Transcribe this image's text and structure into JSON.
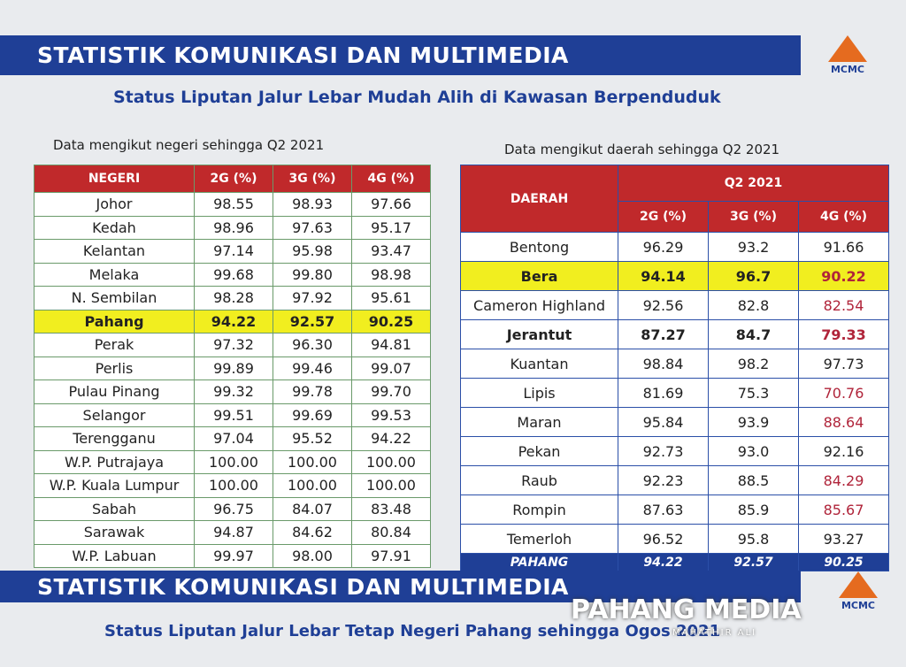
{
  "header": {
    "title": "STATISTIK KOMUNIKASI DAN MULTIMEDIA",
    "logo": "MCMC",
    "subtitle": "Status Liputan Jalur Lebar Mudah Alih di Kawasan Berpenduduk"
  },
  "left_table": {
    "caption": "Data mengikut negeri sehingga Q2 2021",
    "columns": [
      "NEGERI",
      "2G (%)",
      "3G (%)",
      "4G (%)"
    ],
    "rows": [
      [
        "Johor",
        "98.55",
        "98.93",
        "97.66"
      ],
      [
        "Kedah",
        "98.96",
        "97.63",
        "95.17"
      ],
      [
        "Kelantan",
        "97.14",
        "95.98",
        "93.47"
      ],
      [
        "Melaka",
        "99.68",
        "99.80",
        "98.98"
      ],
      [
        "N. Sembilan",
        "98.28",
        "97.92",
        "95.61"
      ],
      [
        "Pahang",
        "94.22",
        "92.57",
        "90.25"
      ],
      [
        "Perak",
        "97.32",
        "96.30",
        "94.81"
      ],
      [
        "Perlis",
        "99.89",
        "99.46",
        "99.07"
      ],
      [
        "Pulau Pinang",
        "99.32",
        "99.78",
        "99.70"
      ],
      [
        "Selangor",
        "99.51",
        "99.69",
        "99.53"
      ],
      [
        "Terengganu",
        "97.04",
        "95.52",
        "94.22"
      ],
      [
        "W.P. Putrajaya",
        "100.00",
        "100.00",
        "100.00"
      ],
      [
        "W.P. Kuala Lumpur",
        "100.00",
        "100.00",
        "100.00"
      ],
      [
        "Sabah",
        "96.75",
        "84.07",
        "83.48"
      ],
      [
        "Sarawak",
        "94.87",
        "84.62",
        "80.84"
      ],
      [
        "W.P. Labuan",
        "99.97",
        "98.00",
        "97.91"
      ]
    ]
  },
  "right_table": {
    "caption": "Data mengikut daerah sehingga Q2 2021",
    "first_column": "DAERAH",
    "group": "Q2 2021",
    "columns": [
      "2G (%)",
      "3G (%)",
      "4G (%)"
    ],
    "rows": [
      [
        "Bentong",
        "96.29",
        "93.2",
        "91.66"
      ],
      [
        "Bera",
        "94.14",
        "96.7",
        "90.22"
      ],
      [
        "Cameron Highland",
        "92.56",
        "82.8",
        "82.54"
      ],
      [
        "Jerantut",
        "87.27",
        "84.7",
        "79.33"
      ],
      [
        "Kuantan",
        "98.84",
        "98.2",
        "97.73"
      ],
      [
        "Lipis",
        "81.69",
        "75.3",
        "70.76"
      ],
      [
        "Maran",
        "95.84",
        "93.9",
        "88.64"
      ],
      [
        "Pekan",
        "92.73",
        "93.0",
        "92.16"
      ],
      [
        "Raub",
        "92.23",
        "88.5",
        "84.29"
      ],
      [
        "Rompin",
        "87.63",
        "85.9",
        "85.67"
      ],
      [
        "Temerloh",
        "96.52",
        "95.8",
        "93.27"
      ]
    ],
    "total": [
      "PAHANG",
      "94.22",
      "92.57",
      "90.25"
    ]
  },
  "footer": {
    "title": "STATISTIK KOMUNIKASI DAN MULTIMEDIA",
    "logo": "MCMC",
    "subtitle": "Status Liputan Jalur Lebar Tetap Negeri Pahang sehingga Ogos 2021"
  },
  "watermark": {
    "name": "PAHANG MEDIA",
    "author": "MAHATHIR ALI"
  }
}
